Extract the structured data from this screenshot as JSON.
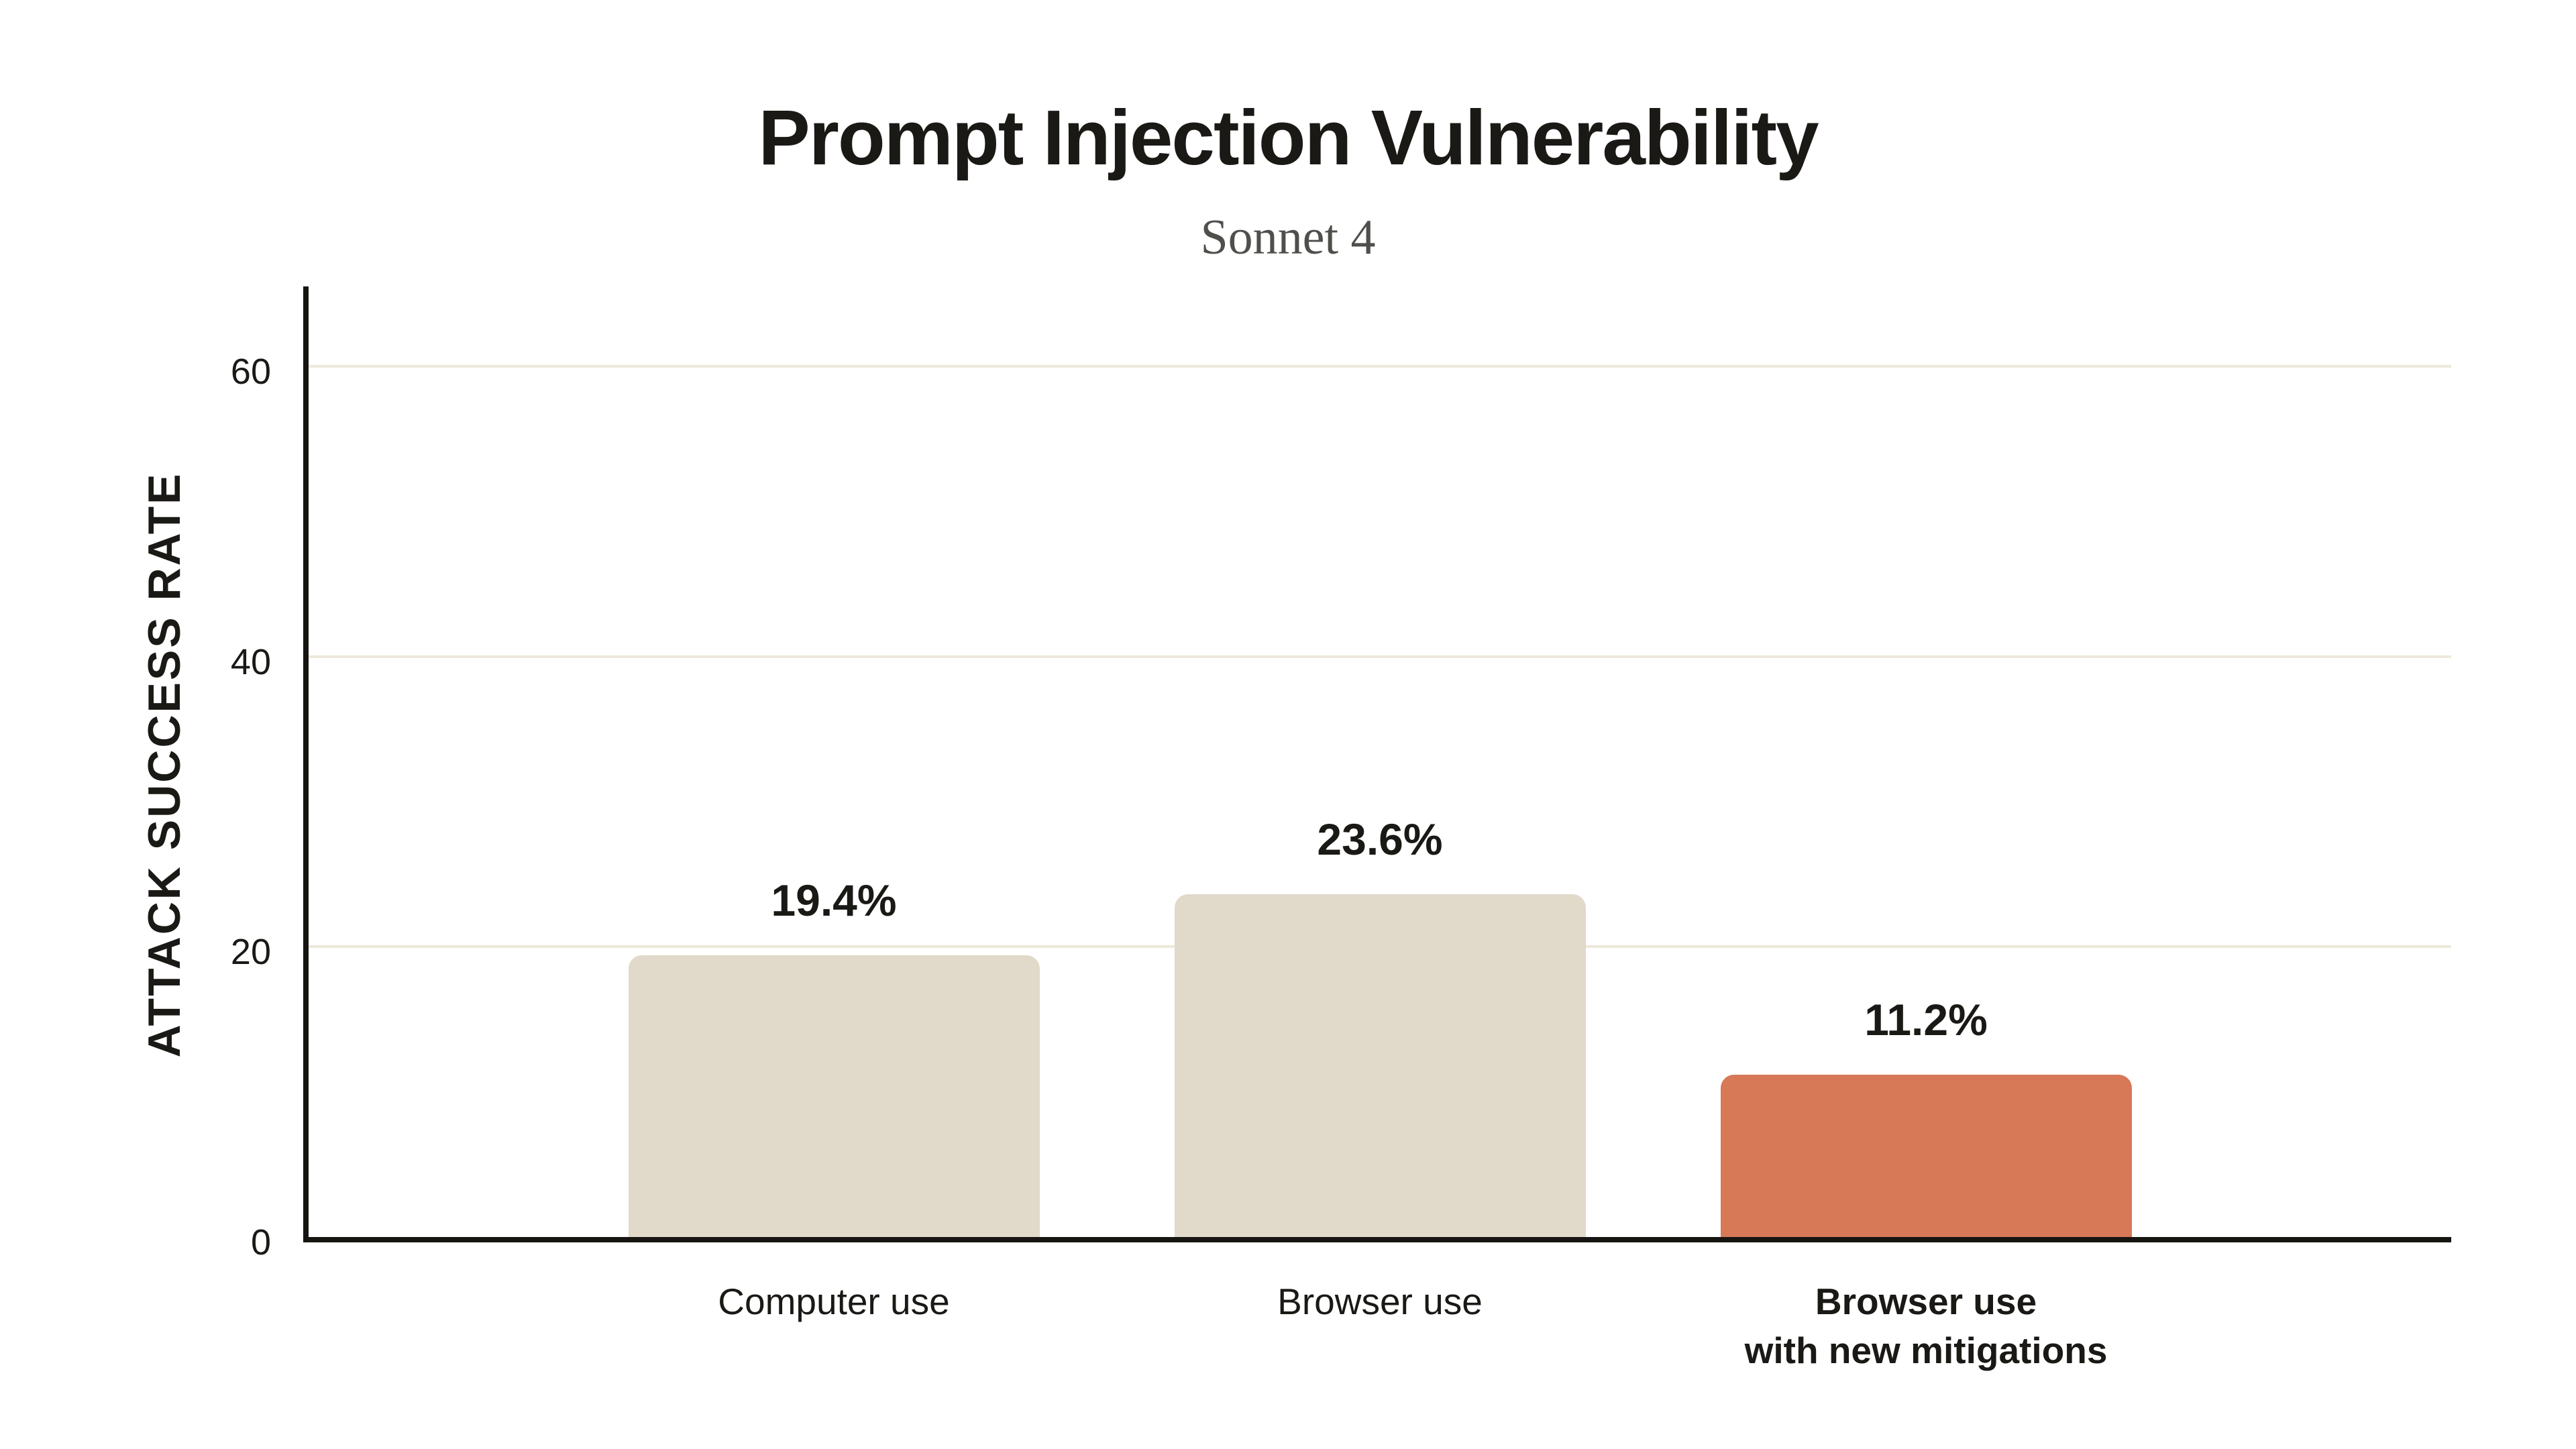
{
  "page": {
    "background": "#ffffff"
  },
  "chart_data": {
    "type": "bar",
    "title": "Prompt Injection Vulnerability",
    "subtitle": "Sonnet 4",
    "xlabel": "",
    "ylabel": "ATTACK SUCCESS RATE",
    "categories": [
      "Computer use",
      "Browser use",
      "Browser use\nwith new mitigations"
    ],
    "values": [
      19.4,
      23.6,
      11.2
    ],
    "value_labels": [
      "19.4%",
      "23.6%",
      "11.2%"
    ],
    "bar_colors": [
      "#e1d9c9",
      "#e1d9c9",
      "#d77857"
    ],
    "emphasized_category_index": 2,
    "yticks": [
      0,
      20,
      40,
      60
    ],
    "ylim": [
      0,
      65.5
    ],
    "grid": "horizontal-only",
    "legend": "none",
    "colors": {
      "axis": "#161512",
      "gridline": "#ede8db",
      "text": "#1a1915",
      "subtitle_text": "#4f4f4b",
      "background": "#ffffff"
    }
  }
}
